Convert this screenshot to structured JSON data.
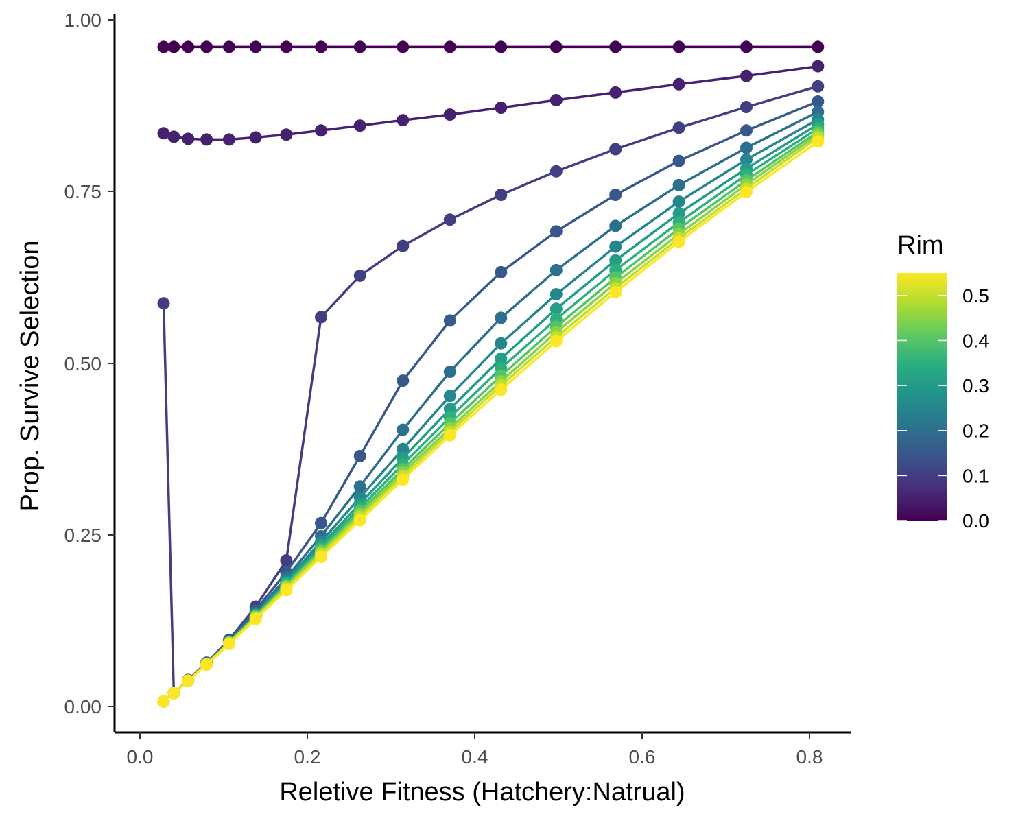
{
  "chart_data": {
    "type": "line",
    "title": "",
    "xlabel": "Reletive Fitness (Hatchery:Natrual)",
    "ylabel": "Prop. Survive Selection",
    "xlim": [
      -0.05,
      0.85
    ],
    "ylim": [
      -0.035,
      1.005
    ],
    "xticks": [
      0.0,
      0.2,
      0.4,
      0.6,
      0.8
    ],
    "xtick_labels": [
      "0.0",
      "0.2",
      "0.4",
      "0.6",
      "0.8"
    ],
    "yticks": [
      0.0,
      0.25,
      0.5,
      0.75,
      1.0
    ],
    "ytick_labels": [
      "0.00",
      "0.25",
      "0.50",
      "0.75",
      "1.00"
    ],
    "grid": false,
    "markers": true,
    "colorscale": "viridis",
    "legend": {
      "title": "Rim",
      "position": "right",
      "ticks": [
        0.0,
        0.1,
        0.2,
        0.3,
        0.4,
        0.5
      ],
      "tick_labels": [
        "0.0",
        "0.1",
        "0.2",
        "0.3",
        "0.4",
        "0.5"
      ],
      "range": [
        0.0,
        0.55
      ]
    },
    "x": [
      0.01,
      0.0225,
      0.04,
      0.0625,
      0.09,
      0.1225,
      0.16,
      0.2025,
      0.25,
      0.3025,
      0.36,
      0.4225,
      0.49,
      0.5625,
      0.64,
      0.7225,
      0.81
    ],
    "series": [
      {
        "rim": 0.0,
        "values": [
          0.957,
          0.957,
          0.957,
          0.957,
          0.957,
          0.957,
          0.957,
          0.957,
          0.957,
          0.957,
          0.957,
          0.957,
          0.957,
          0.957,
          0.957,
          0.957,
          0.957
        ]
      },
      {
        "rim": 0.05,
        "values": [
          0.832,
          0.827,
          0.824,
          0.823,
          0.823,
          0.826,
          0.83,
          0.836,
          0.843,
          0.851,
          0.859,
          0.869,
          0.88,
          0.891,
          0.903,
          0.915,
          0.929
        ]
      },
      {
        "rim": 0.1,
        "values": [
          0.586,
          0.022,
          0.041,
          0.066,
          0.099,
          0.147,
          0.214,
          0.566,
          0.626,
          0.669,
          0.707,
          0.743,
          0.777,
          0.809,
          0.84,
          0.87,
          0.9
        ]
      },
      {
        "rim": 0.15,
        "values": [
          0.01,
          0.022,
          0.04,
          0.065,
          0.098,
          0.142,
          0.197,
          0.268,
          0.365,
          0.474,
          0.561,
          0.631,
          0.69,
          0.743,
          0.792,
          0.836,
          0.878
        ]
      },
      {
        "rim": 0.2,
        "values": [
          0.01,
          0.022,
          0.04,
          0.065,
          0.097,
          0.138,
          0.189,
          0.249,
          0.321,
          0.403,
          0.487,
          0.565,
          0.634,
          0.698,
          0.757,
          0.811,
          0.863
        ]
      },
      {
        "rim": 0.25,
        "values": [
          0.01,
          0.022,
          0.04,
          0.065,
          0.096,
          0.136,
          0.185,
          0.241,
          0.305,
          0.375,
          0.452,
          0.528,
          0.599,
          0.668,
          0.733,
          0.794,
          0.852
        ]
      },
      {
        "rim": 0.3,
        "values": [
          0.01,
          0.022,
          0.04,
          0.064,
          0.096,
          0.135,
          0.182,
          0.236,
          0.296,
          0.362,
          0.433,
          0.506,
          0.578,
          0.648,
          0.716,
          0.781,
          0.845
        ]
      },
      {
        "rim": 0.35,
        "values": [
          0.01,
          0.022,
          0.04,
          0.064,
          0.095,
          0.134,
          0.18,
          0.232,
          0.29,
          0.353,
          0.421,
          0.492,
          0.563,
          0.634,
          0.703,
          0.772,
          0.839
        ]
      },
      {
        "rim": 0.4,
        "values": [
          0.01,
          0.022,
          0.04,
          0.064,
          0.095,
          0.133,
          0.178,
          0.229,
          0.285,
          0.346,
          0.412,
          0.481,
          0.552,
          0.623,
          0.694,
          0.764,
          0.834
        ]
      },
      {
        "rim": 0.45,
        "values": [
          0.01,
          0.022,
          0.04,
          0.064,
          0.095,
          0.132,
          0.176,
          0.226,
          0.281,
          0.341,
          0.405,
          0.473,
          0.544,
          0.615,
          0.686,
          0.758,
          0.83
        ]
      },
      {
        "rim": 0.5,
        "values": [
          0.01,
          0.022,
          0.04,
          0.064,
          0.094,
          0.131,
          0.174,
          0.223,
          0.277,
          0.336,
          0.4,
          0.467,
          0.537,
          0.608,
          0.68,
          0.752,
          0.826
        ]
      },
      {
        "rim": 0.55,
        "values": [
          0.01,
          0.022,
          0.04,
          0.063,
          0.093,
          0.129,
          0.171,
          0.219,
          0.272,
          0.331,
          0.395,
          0.461,
          0.531,
          0.602,
          0.675,
          0.747,
          0.82
        ]
      }
    ]
  }
}
